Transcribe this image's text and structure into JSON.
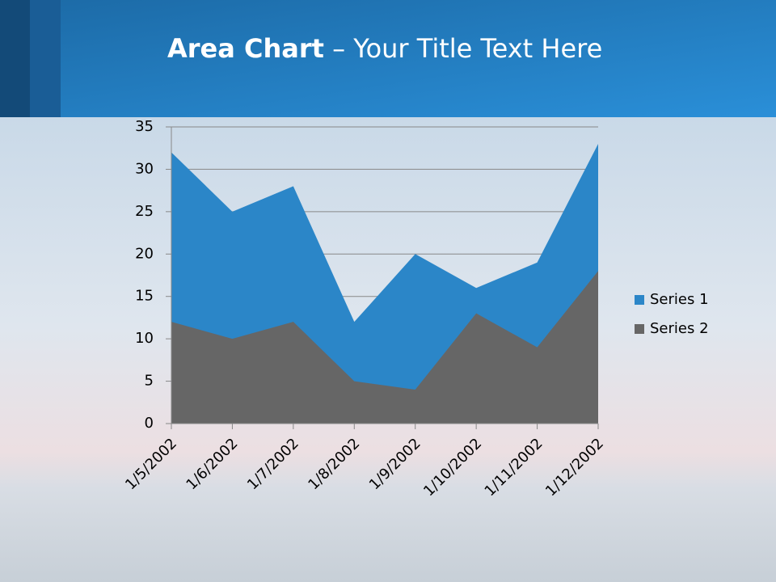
{
  "slide": {
    "title_bold": "Area Chart",
    "title_rest": "– Your Title Text Here"
  },
  "chart_data": {
    "type": "area",
    "categories": [
      "1/5/2002",
      "1/6/2002",
      "1/7/2002",
      "1/8/2002",
      "1/9/2002",
      "1/10/2002",
      "1/11/2002",
      "1/12/2002"
    ],
    "series": [
      {
        "name": "Series 1",
        "color": "#2b86c8",
        "values": [
          32,
          25,
          28,
          12,
          20,
          16,
          19,
          33
        ]
      },
      {
        "name": "Series 2",
        "color": "#666666",
        "values": [
          12,
          10,
          12,
          5,
          4,
          13,
          9,
          18
        ]
      }
    ],
    "ylim": [
      0,
      35
    ],
    "yticks": [
      0,
      5,
      10,
      15,
      20,
      25,
      30,
      35
    ],
    "grid": true,
    "legend": "right"
  }
}
